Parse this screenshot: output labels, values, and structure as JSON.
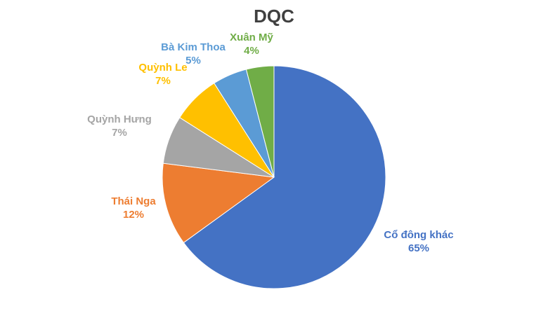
{
  "chart_data": {
    "type": "pie",
    "title": "DQC",
    "categories": [
      "Cổ đông khác",
      "Thái Nga",
      "Quỳnh Hưng",
      "Quỳnh Le",
      "Bà Kim Thoa",
      "Xuân Mỹ"
    ],
    "values": [
      65,
      12,
      7,
      7,
      5,
      4
    ],
    "value_labels": [
      "65%",
      "12%",
      "7%",
      "7%",
      "5%",
      "4%"
    ],
    "colors": [
      "#4472C4",
      "#ED7D31",
      "#A5A5A5",
      "#FFC000",
      "#5B9BD5",
      "#70AD47"
    ],
    "start_angle": "12 o'clock, clockwise",
    "legend": "none (data labels outside end)"
  },
  "labels": {
    "s0": {
      "name": "Cổ đông khác",
      "pct": "65%"
    },
    "s1": {
      "name": "Thái Nga",
      "pct": "12%"
    },
    "s2": {
      "name": "Quỳnh Hưng",
      "pct": "7%"
    },
    "s3": {
      "name": "Quỳnh Le",
      "pct": "7%"
    },
    "s4": {
      "name": "Bà Kim Thoa",
      "pct": "5%"
    },
    "s5": {
      "name": "Xuân Mỹ",
      "pct": "4%"
    }
  }
}
